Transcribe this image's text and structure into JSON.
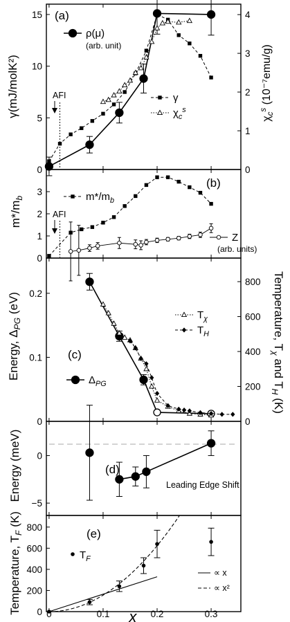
{
  "chart_data": [
    {
      "panel": "a",
      "type": "line",
      "panel_label": "(a)",
      "ylabel": "γ(mJ/molK²)",
      "ylabel_right": "χ_c^s (10⁻⁷emu/g)",
      "ylim": [
        0,
        16
      ],
      "yticks": [
        0,
        5,
        10,
        15
      ],
      "ylim_right": [
        0,
        4.27
      ],
      "yticks_right": [
        0,
        1,
        2,
        3,
        4
      ],
      "annotation": "AFI",
      "series": [
        {
          "name": "ρ(μ)",
          "sublabel": "(arb. unit)",
          "style": "solid-circle",
          "x": [
            0,
            0.075,
            0.13,
            0.175,
            0.2,
            0.3
          ],
          "y": [
            0.3,
            2.4,
            5.5,
            8.8,
            15.1,
            15.0
          ],
          "err": [
            0.9,
            0.8,
            1.0,
            1.4,
            2.0,
            2.0
          ]
        },
        {
          "name": "γ",
          "style": "dashed-square",
          "x": [
            0,
            0.02,
            0.04,
            0.06,
            0.08,
            0.1,
            0.12,
            0.14,
            0.16,
            0.18,
            0.2,
            0.22,
            0.24,
            0.26,
            0.28,
            0.3
          ],
          "y": [
            0.8,
            2.5,
            3.4,
            4.0,
            4.7,
            5.4,
            6.3,
            7.5,
            9.3,
            11.5,
            15.0,
            14.5,
            13.0,
            12.2,
            11.0,
            8.9
          ]
        },
        {
          "name": "χ_c^s",
          "style": "dotted-triangle",
          "axis": "right",
          "x": [
            0.1,
            0.11,
            0.12,
            0.13,
            0.14,
            0.15,
            0.16,
            0.17,
            0.18,
            0.19,
            0.2,
            0.21,
            0.22,
            0.24,
            0.26
          ],
          "y": [
            1.75,
            1.8,
            1.92,
            2.02,
            2.18,
            2.3,
            2.5,
            2.62,
            2.9,
            3.3,
            3.65,
            3.78,
            3.82,
            3.8,
            3.84
          ]
        }
      ]
    },
    {
      "panel": "b",
      "type": "line",
      "panel_label": "(b)",
      "ylabel": "m*/m_b",
      "ylim": [
        0,
        4.0
      ],
      "yticks": [
        0,
        1,
        2,
        3
      ],
      "annotation": "AFI",
      "series": [
        {
          "name": "m*/m_b",
          "style": "dashed-square",
          "x": [
            0,
            0.04,
            0.06,
            0.08,
            0.1,
            0.12,
            0.14,
            0.16,
            0.18,
            0.2,
            0.22,
            0.24,
            0.26,
            0.28,
            0.3
          ],
          "y": [
            0.1,
            1.15,
            1.3,
            1.4,
            1.6,
            1.85,
            2.35,
            2.8,
            3.3,
            3.65,
            3.65,
            3.45,
            3.2,
            2.95,
            2.45
          ]
        },
        {
          "name": "Z",
          "sublabel": "(arb. units)",
          "style": "line-open-circle",
          "x": [
            0.04,
            0.055,
            0.075,
            0.09,
            0.13,
            0.16,
            0.17,
            0.18,
            0.2,
            0.22,
            0.24,
            0.26,
            0.28,
            0.3
          ],
          "y": [
            0.3,
            0.35,
            0.45,
            0.55,
            0.68,
            0.62,
            0.58,
            0.72,
            0.8,
            0.85,
            0.9,
            0.98,
            1.05,
            1.35
          ],
          "err": [
            1.33,
            1.13,
            0.15,
            0.15,
            0.25,
            0.2,
            0.2,
            0.12,
            0.1,
            0.08,
            0.08,
            0.1,
            0.12,
            0.2
          ]
        }
      ]
    },
    {
      "panel": "c",
      "type": "line",
      "panel_label": "(c)",
      "ylabel": "Energy, Δ_PG (eV)",
      "ylabel_right": "Temperature, T_χ and T_H (K)",
      "ylim": [
        0,
        0.255
      ],
      "yticks": [
        0,
        0.1,
        0.2
      ],
      "ylim_right": [
        0,
        935
      ],
      "yticks_right": [
        0,
        200,
        400,
        600,
        800
      ],
      "series": [
        {
          "name": "Δ_PG",
          "style": "solid-circle",
          "x": [
            0.075,
            0.13,
            0.175,
            0.2,
            0.3
          ],
          "y": [
            0.218,
            0.133,
            0.065,
            0.014,
            0.012
          ],
          "err": [
            0.013,
            0.008,
            0.008,
            0,
            0
          ],
          "open": [
            false,
            false,
            false,
            true,
            true
          ]
        },
        {
          "name": "T_χ",
          "style": "dotted-triangle",
          "axis": "right",
          "x": [
            0.1,
            0.11,
            0.12,
            0.13,
            0.14,
            0.15,
            0.16,
            0.17,
            0.18,
            0.19,
            0.2,
            0.22,
            0.24,
            0.26,
            0.28,
            0.3
          ],
          "y": [
            670,
            620,
            560,
            505,
            480,
            465,
            420,
            360,
            300,
            200,
            120,
            85,
            60,
            45,
            40,
            35
          ]
        },
        {
          "name": "T_H",
          "style": "dashed-diamond",
          "axis": "right",
          "x": [
            0.15,
            0.16,
            0.17,
            0.18,
            0.19,
            0.2,
            0.22,
            0.24,
            0.25,
            0.26,
            0.28,
            0.3,
            0.32,
            0.34
          ],
          "y": [
            460,
            420,
            360,
            330,
            250,
            160,
            90,
            70,
            65,
            60,
            50,
            45,
            40,
            40
          ]
        }
      ]
    },
    {
      "panel": "d",
      "type": "scatter",
      "panel_label": "(d)",
      "ylabel": "Energy (meV)",
      "ylim": [
        -6.3,
        3.6
      ],
      "yticks": [
        -5,
        0
      ],
      "annotation": "Leading Edge Shift",
      "reference_line": 1.2,
      "series": [
        {
          "name": "Leading Edge Shift",
          "style": "solid-circle",
          "x": [
            0.075,
            0.13,
            0.16,
            0.18,
            0.3
          ],
          "y": [
            0.3,
            -2.5,
            -2.2,
            -1.7,
            1.3
          ],
          "err": [
            5.0,
            1.8,
            1.0,
            1.7,
            1.3
          ],
          "connected": [
            false,
            true,
            true,
            true,
            true
          ]
        }
      ]
    },
    {
      "panel": "e",
      "type": "scatter",
      "panel_label": "(e)",
      "ylabel": "Temperature, T_F (K)",
      "xlabel": "x",
      "xlim": [
        -0.005,
        0.355
      ],
      "xticks": [
        0,
        0.1,
        0.2,
        0.3
      ],
      "xticklabels": [
        "0",
        "0.1",
        "0.2",
        "0.3"
      ],
      "ylim": [
        0,
        910
      ],
      "yticks": [
        0,
        200,
        400,
        600,
        800
      ],
      "series": [
        {
          "name": "T_F",
          "style": "solid-dot",
          "x": [
            0,
            0.075,
            0.13,
            0.175,
            0.2,
            0.3
          ],
          "y": [
            0,
            90,
            240,
            435,
            640,
            660
          ],
          "err": [
            0,
            25,
            50,
            75,
            130,
            130
          ]
        }
      ],
      "fits": [
        {
          "name": "∝ x",
          "style": "solid",
          "x": [
            0,
            0.2
          ],
          "y": [
            0,
            330
          ]
        },
        {
          "name": "∝ x²",
          "style": "dashed",
          "coef": 15600,
          "xmax": 0.241
        }
      ]
    }
  ]
}
